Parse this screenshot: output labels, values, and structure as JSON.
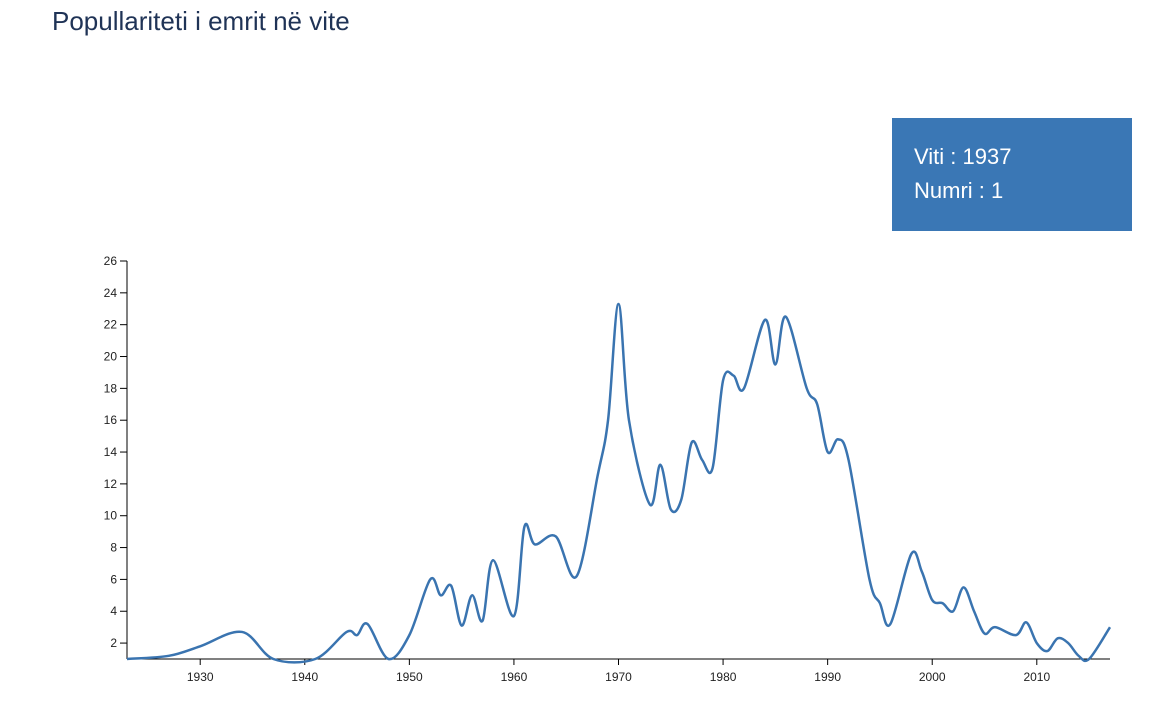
{
  "chart_data": {
    "type": "line",
    "title": "Popullariteti i emrit në vite",
    "tooltip": {
      "year_label": "Viti : 1937",
      "count_label": "Numri : 1"
    },
    "x": [
      1923,
      1927,
      1930,
      1934,
      1937,
      1941,
      1944,
      1945,
      1946,
      1948,
      1950,
      1952,
      1953,
      1954,
      1955,
      1956,
      1957,
      1958,
      1960,
      1961,
      1962,
      1964,
      1966,
      1968,
      1969,
      1970,
      1971,
      1973,
      1974,
      1975,
      1976,
      1977,
      1978,
      1979,
      1980,
      1981,
      1982,
      1984,
      1985,
      1986,
      1988,
      1989,
      1990,
      1991,
      1992,
      1994,
      1995,
      1996,
      1998,
      1999,
      2000,
      2001,
      2002,
      2003,
      2004,
      2005,
      2006,
      2008,
      2009,
      2010,
      2011,
      2012,
      2013,
      2014,
      2015,
      2017
    ],
    "values": [
      1,
      1.2,
      1.8,
      2.7,
      1,
      1,
      2.7,
      2.5,
      3.2,
      1,
      2.5,
      6,
      5,
      5.6,
      3.1,
      5,
      3.4,
      7.2,
      3.7,
      9.3,
      8.2,
      8.7,
      6.2,
      12.5,
      16,
      23.3,
      16,
      10.7,
      13.2,
      10.4,
      11,
      14.6,
      13.5,
      13,
      18.5,
      18.8,
      18,
      22.3,
      19.5,
      22.5,
      18,
      17,
      14,
      14.8,
      13.5,
      6,
      4.5,
      3.2,
      7.6,
      6.5,
      4.7,
      4.5,
      4,
      5.5,
      4,
      2.6,
      3,
      2.5,
      3.3,
      2,
      1.5,
      2.3,
      2,
      1.2,
      1,
      3
    ],
    "color": "#3a74b0",
    "xlim": [
      1923,
      2017
    ],
    "xticks": [
      1930,
      1940,
      1950,
      1960,
      1970,
      1980,
      1990,
      2000,
      2010
    ],
    "ylim": [
      1,
      26
    ],
    "yticks": [
      2,
      4,
      6,
      8,
      10,
      12,
      14,
      16,
      18,
      20,
      22,
      24,
      26
    ]
  }
}
